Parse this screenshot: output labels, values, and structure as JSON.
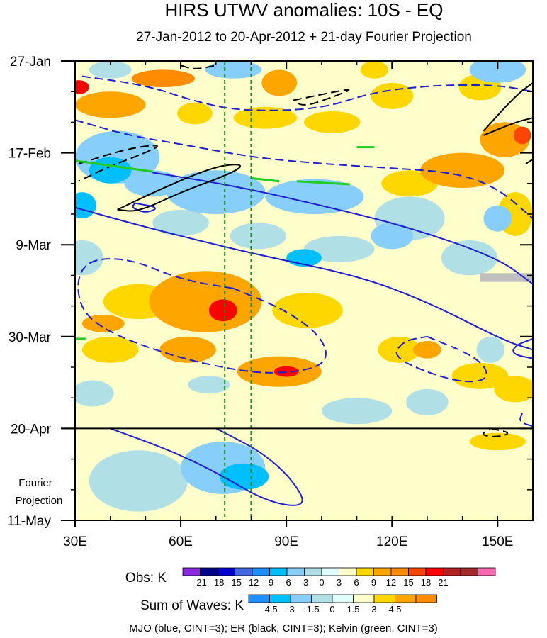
{
  "chart_data": {
    "type": "heatmap",
    "title": "HIRS UTWV anomalies: 10S - EQ",
    "subtitle": "27-Jan-2012 to 20-Apr-2012 + 21-day Fourier Projection",
    "x_axis": {
      "range": [
        30,
        160
      ],
      "unit": "degrees longitude",
      "ticks": [
        30,
        60,
        90,
        120,
        150
      ],
      "tick_labels": [
        "30E",
        "60E",
        "90E",
        "120E",
        "150E"
      ],
      "minor_step": 10
    },
    "y_axis": {
      "range_days": [
        0,
        105
      ],
      "inverted": true,
      "tick_days": [
        0,
        21,
        42,
        63,
        84,
        105
      ],
      "tick_labels": [
        "27-Jan",
        "17-Feb",
        "9-Mar",
        "30-Mar",
        "20-Apr",
        "11-May"
      ],
      "minor_step_days": 7
    },
    "observation_end_day": 84,
    "fourier_projection_label_1": "Fourier",
    "fourier_projection_label_2": "Projection",
    "reference_longitudes": [
      72.5,
      80
    ],
    "obs_colorbar": {
      "label": "Obs: K",
      "labels": [
        "-21",
        "-18",
        "-15",
        "-12",
        "-9",
        "-6",
        "-3",
        "0",
        "3",
        "6",
        "9",
        "12",
        "15",
        "18",
        "21"
      ],
      "colors": [
        "#8a2be2",
        "#00008b",
        "#0000cd",
        "#4169e1",
        "#1e90ff",
        "#00bfff",
        "#87cefa",
        "#b0e0e6",
        "#e0ffff",
        "#ffffcc",
        "#ffd700",
        "#ffa500",
        "#ff8c00",
        "#ff4500",
        "#ff0000",
        "#b22222",
        "#a52a2a",
        "#ff69b4"
      ]
    },
    "waves_colorbar": {
      "label": "Sum of Waves: K",
      "labels": [
        "-4.5",
        "-3",
        "-1.5",
        "0",
        "1.5",
        "3",
        "4.5"
      ],
      "colors": [
        "#1e90ff",
        "#00bfff",
        "#87cefa",
        "#b0e0e6",
        "#e0ffff",
        "#ffffcc",
        "#ffd700",
        "#ffa500",
        "#ff8c00"
      ]
    },
    "legend_text": "MJO (blue, CINT=3); ER (black, CINT=3); Kelvin (green, CINT=3)",
    "anomaly_blobs": [
      {
        "lon": 31,
        "day": 6,
        "rx": 3,
        "rd": 1.6,
        "level": 6
      },
      {
        "lon": 40,
        "day": 10,
        "rx": 10,
        "rd": 3,
        "level": 3
      },
      {
        "lon": 55,
        "day": 4,
        "rx": 9,
        "rd": 2,
        "level": 4
      },
      {
        "lon": 64,
        "day": 12,
        "rx": 5,
        "rd": 2.5,
        "level": 2
      },
      {
        "lon": 88,
        "day": 5,
        "rx": 5,
        "rd": 3,
        "level": 3
      },
      {
        "lon": 84,
        "day": 13,
        "rx": 9,
        "rd": 2.5,
        "level": 2
      },
      {
        "lon": 103,
        "day": 14,
        "rx": 8,
        "rd": 2.5,
        "level": 2
      },
      {
        "lon": 115,
        "day": 2,
        "rx": 4,
        "rd": 2,
        "level": 2
      },
      {
        "lon": 145,
        "day": 6,
        "rx": 6,
        "rd": 3,
        "level": 2
      },
      {
        "lon": 120,
        "day": 8,
        "rx": 6,
        "rd": 3,
        "level": 2
      },
      {
        "lon": 152,
        "day": 18,
        "rx": 7,
        "rd": 4,
        "level": 3
      },
      {
        "lon": 157,
        "day": 17,
        "rx": 2.5,
        "rd": 2,
        "level": 5
      },
      {
        "lon": 140,
        "day": 25,
        "rx": 12,
        "rd": 4,
        "level": 3
      },
      {
        "lon": 125,
        "day": 28,
        "rx": 8,
        "rd": 3,
        "level": 2
      },
      {
        "lon": 155,
        "day": 35,
        "rx": 5,
        "rd": 5,
        "level": 2
      },
      {
        "lon": 75,
        "day": 2,
        "rx": 8,
        "rd": 2,
        "level": -2
      },
      {
        "lon": 40,
        "day": 2,
        "rx": 6,
        "rd": 2,
        "level": -1
      },
      {
        "lon": 150,
        "day": 2,
        "rx": 8,
        "rd": 3,
        "level": -2
      },
      {
        "lon": 42,
        "day": 22,
        "rx": 12,
        "rd": 6,
        "level": -2
      },
      {
        "lon": 40,
        "day": 25,
        "rx": 6,
        "rd": 3,
        "level": -3
      },
      {
        "lon": 52,
        "day": 28,
        "rx": 8,
        "rd": 3,
        "level": -2
      },
      {
        "lon": 32,
        "day": 33,
        "rx": 4,
        "rd": 3,
        "level": -3
      },
      {
        "lon": 70,
        "day": 30,
        "rx": 14,
        "rd": 5,
        "level": -2
      },
      {
        "lon": 98,
        "day": 31,
        "rx": 14,
        "rd": 4,
        "level": -2
      },
      {
        "lon": 125,
        "day": 36,
        "rx": 10,
        "rd": 5,
        "level": -1
      },
      {
        "lon": 105,
        "day": 43,
        "rx": 10,
        "rd": 3,
        "level": -1
      },
      {
        "lon": 95,
        "day": 45,
        "rx": 5,
        "rd": 2,
        "level": -3
      },
      {
        "lon": 120,
        "day": 40,
        "rx": 6,
        "rd": 3,
        "level": -2
      },
      {
        "lon": 150,
        "day": 36,
        "rx": 4,
        "rd": 3,
        "level": -2
      },
      {
        "lon": 82,
        "day": 40,
        "rx": 8,
        "rd": 3,
        "level": -1
      },
      {
        "lon": 60,
        "day": 37,
        "rx": 8,
        "rd": 3,
        "level": -1
      },
      {
        "lon": 32,
        "day": 45,
        "rx": 6,
        "rd": 4,
        "level": -1
      },
      {
        "lon": 142,
        "day": 45,
        "rx": 8,
        "rd": 4,
        "level": -1
      },
      {
        "lon": 67,
        "day": 55,
        "rx": 16,
        "rd": 7,
        "level": 3
      },
      {
        "lon": 72,
        "day": 57,
        "rx": 4,
        "rd": 2.5,
        "level": 6
      },
      {
        "lon": 48,
        "day": 55,
        "rx": 10,
        "rd": 4,
        "level": 2
      },
      {
        "lon": 96,
        "day": 57,
        "rx": 10,
        "rd": 4,
        "level": 2
      },
      {
        "lon": 38,
        "day": 60,
        "rx": 6,
        "rd": 2,
        "level": 3
      },
      {
        "lon": 62,
        "day": 66,
        "rx": 8,
        "rd": 3,
        "level": 3
      },
      {
        "lon": 40,
        "day": 66,
        "rx": 8,
        "rd": 3,
        "level": 2
      },
      {
        "lon": 88,
        "day": 71,
        "rx": 12,
        "rd": 3.5,
        "level": 3
      },
      {
        "lon": 90,
        "day": 71,
        "rx": 3.5,
        "rd": 1.2,
        "level": 6
      },
      {
        "lon": 122,
        "day": 66,
        "rx": 6,
        "rd": 3,
        "level": 2
      },
      {
        "lon": 130,
        "day": 66,
        "rx": 4,
        "rd": 2,
        "level": 3
      },
      {
        "lon": 145,
        "day": 72,
        "rx": 8,
        "rd": 3,
        "level": 2
      },
      {
        "lon": 155,
        "day": 75,
        "rx": 6,
        "rd": 3,
        "level": 2
      },
      {
        "lon": 65,
        "day": 80,
        "rx": 20,
        "rd": 3.5,
        "level": 1
      },
      {
        "lon": 135,
        "day": 52,
        "rx": 10,
        "rd": 3,
        "level": 1
      },
      {
        "lon": 110,
        "day": 61,
        "rx": 8,
        "rd": 3,
        "level": 1
      },
      {
        "lon": 150,
        "day": 57,
        "rx": 8,
        "rd": 5,
        "level": 1
      },
      {
        "lon": 35,
        "day": 76,
        "rx": 6,
        "rd": 3,
        "level": -1
      },
      {
        "lon": 110,
        "day": 80,
        "rx": 10,
        "rd": 3,
        "level": -1
      },
      {
        "lon": 130,
        "day": 78,
        "rx": 6,
        "rd": 3,
        "level": -1
      },
      {
        "lon": 68,
        "day": 74,
        "rx": 6,
        "rd": 2,
        "level": -1
      },
      {
        "lon": 148,
        "day": 66,
        "rx": 4,
        "rd": 3,
        "level": -1
      }
    ],
    "projection_blobs": [
      {
        "lon": 72,
        "day": 93,
        "rx": 12,
        "rd": 6,
        "level": -2
      },
      {
        "lon": 78,
        "day": 95,
        "rx": 7,
        "rd": 3,
        "level": -3
      },
      {
        "lon": 48,
        "day": 96,
        "rx": 14,
        "rd": 7,
        "level": -1
      },
      {
        "lon": 115,
        "day": 88,
        "rx": 8,
        "rd": 3,
        "level": 1
      },
      {
        "lon": 150,
        "day": 87,
        "rx": 8,
        "rd": 2,
        "level": 2
      },
      {
        "lon": 128,
        "day": 98,
        "rx": 14,
        "rd": 8,
        "level": 1
      },
      {
        "lon": 152,
        "day": 100,
        "rx": 8,
        "rd": 6,
        "level": 1
      }
    ],
    "mjo_contours": [
      {
        "style": "dashed",
        "points": [
          [
            32,
            3.5
          ],
          [
            50,
            5.5
          ],
          [
            65,
            9.5
          ],
          [
            78,
            11.5
          ],
          [
            100,
            11
          ],
          [
            115,
            7
          ],
          [
            133,
            5.5
          ],
          [
            150,
            5.5
          ],
          [
            160,
            7
          ]
        ]
      },
      {
        "style": "dashed",
        "points": [
          [
            30,
            13.5
          ],
          [
            45,
            17
          ],
          [
            60,
            19
          ],
          [
            80,
            22
          ],
          [
            100,
            23.5
          ],
          [
            120,
            24.5
          ],
          [
            138,
            25.5
          ],
          [
            150,
            29
          ],
          [
            160,
            36
          ]
        ]
      },
      {
        "style": "solid",
        "points": [
          [
            52,
            25.5
          ],
          [
            75,
            28.5
          ],
          [
            100,
            33
          ],
          [
            125,
            38
          ],
          [
            150,
            45
          ],
          [
            160,
            51
          ]
        ]
      },
      {
        "style": "solid",
        "points": [
          [
            30,
            33.5
          ],
          [
            50,
            38
          ],
          [
            80,
            44
          ],
          [
            110,
            49
          ],
          [
            130,
            55
          ],
          [
            152,
            64
          ],
          [
            160,
            66
          ]
        ]
      },
      {
        "style": "dashed",
        "points": [
          [
            75,
            52
          ],
          [
            60,
            50
          ],
          [
            45,
            45
          ],
          [
            33,
            45.5
          ],
          [
            30,
            52
          ],
          [
            34,
            60
          ],
          [
            55,
            67
          ],
          [
            80,
            71.5
          ],
          [
            95,
            71
          ],
          [
            102,
            68.5
          ],
          [
            100,
            63
          ],
          [
            90,
            57
          ],
          [
            75,
            52
          ]
        ]
      },
      {
        "style": "dashed",
        "points": [
          [
            130,
            63
          ],
          [
            145,
            68
          ],
          [
            148,
            73
          ],
          [
            138,
            73.5
          ],
          [
            120,
            68
          ],
          [
            123,
            64
          ],
          [
            130,
            63
          ]
        ]
      },
      {
        "style": "solid",
        "points": [
          [
            40,
            84
          ],
          [
            57,
            89
          ],
          [
            70,
            94
          ],
          [
            85,
            101
          ],
          [
            96,
            102
          ],
          [
            92,
            96
          ],
          [
            84,
            90
          ],
          [
            75,
            86
          ],
          [
            70,
            84
          ]
        ]
      },
      {
        "style": "solid",
        "points": [
          [
            47,
            32.5
          ],
          [
            54,
            33.5
          ],
          [
            50,
            34.8
          ],
          [
            46,
            33.5
          ],
          [
            47,
            32.5
          ]
        ]
      },
      {
        "style": "solid",
        "points": [
          [
            160,
            63.5
          ],
          [
            155,
            65
          ],
          [
            154,
            67
          ],
          [
            160,
            68
          ]
        ]
      },
      {
        "style": "dashed",
        "points": [
          [
            157,
            80.5
          ],
          [
            156,
            82.5
          ],
          [
            160,
            83.5
          ]
        ]
      }
    ],
    "er_contours": [
      {
        "style": "dashed",
        "points": [
          [
            60,
            1
          ],
          [
            64,
            2
          ],
          [
            70,
            1
          ]
        ]
      },
      {
        "style": "dashed",
        "points": [
          [
            92,
            9
          ],
          [
            110,
            6
          ],
          [
            104,
            8
          ],
          [
            95,
            10.5
          ],
          [
            92,
            9
          ]
        ]
      },
      {
        "style": "dashed",
        "points": [
          [
            31,
            23.5
          ],
          [
            45,
            20
          ],
          [
            55,
            19
          ],
          [
            50,
            21
          ],
          [
            40,
            24
          ],
          [
            31,
            27.5
          ]
        ]
      },
      {
        "style": "solid",
        "points": [
          [
            42,
            34
          ],
          [
            55,
            29
          ],
          [
            70,
            24
          ],
          [
            78,
            23.5
          ],
          [
            75,
            25.5
          ],
          [
            60,
            30
          ],
          [
            48,
            34.5
          ],
          [
            42,
            34
          ]
        ]
      },
      {
        "style": "solid",
        "points": [
          [
            146,
            16
          ],
          [
            155,
            8
          ],
          [
            160,
            5
          ]
        ]
      },
      {
        "style": "solid",
        "points": [
          [
            146,
            17
          ],
          [
            155,
            14
          ],
          [
            160,
            13
          ]
        ]
      },
      {
        "style": "dashed",
        "points": [
          [
            148,
            84
          ],
          [
            154,
            85
          ],
          [
            150,
            86
          ],
          [
            145,
            85.5
          ],
          [
            148,
            84
          ]
        ]
      },
      {
        "style": "dashed",
        "points": [
          [
            158,
            23.5
          ],
          [
            160,
            22.5
          ]
        ]
      }
    ],
    "kelvin_contours": [
      {
        "points": [
          [
            30,
            22.8
          ],
          [
            52,
            25.3
          ]
        ]
      },
      {
        "points": [
          [
            93,
            27.5
          ],
          [
            108,
            28.2
          ]
        ]
      },
      {
        "points": [
          [
            110,
            19.7
          ],
          [
            115,
            19.7
          ]
        ]
      },
      {
        "points": [
          [
            80,
            26.8
          ],
          [
            88,
            27.5
          ]
        ]
      },
      {
        "points": [
          [
            30,
            63.5
          ],
          [
            33,
            63.5
          ]
        ]
      }
    ],
    "missing_data": {
      "lon": 145,
      "day": 49.5,
      "width_deg": 15,
      "height_days": 2
    }
  }
}
